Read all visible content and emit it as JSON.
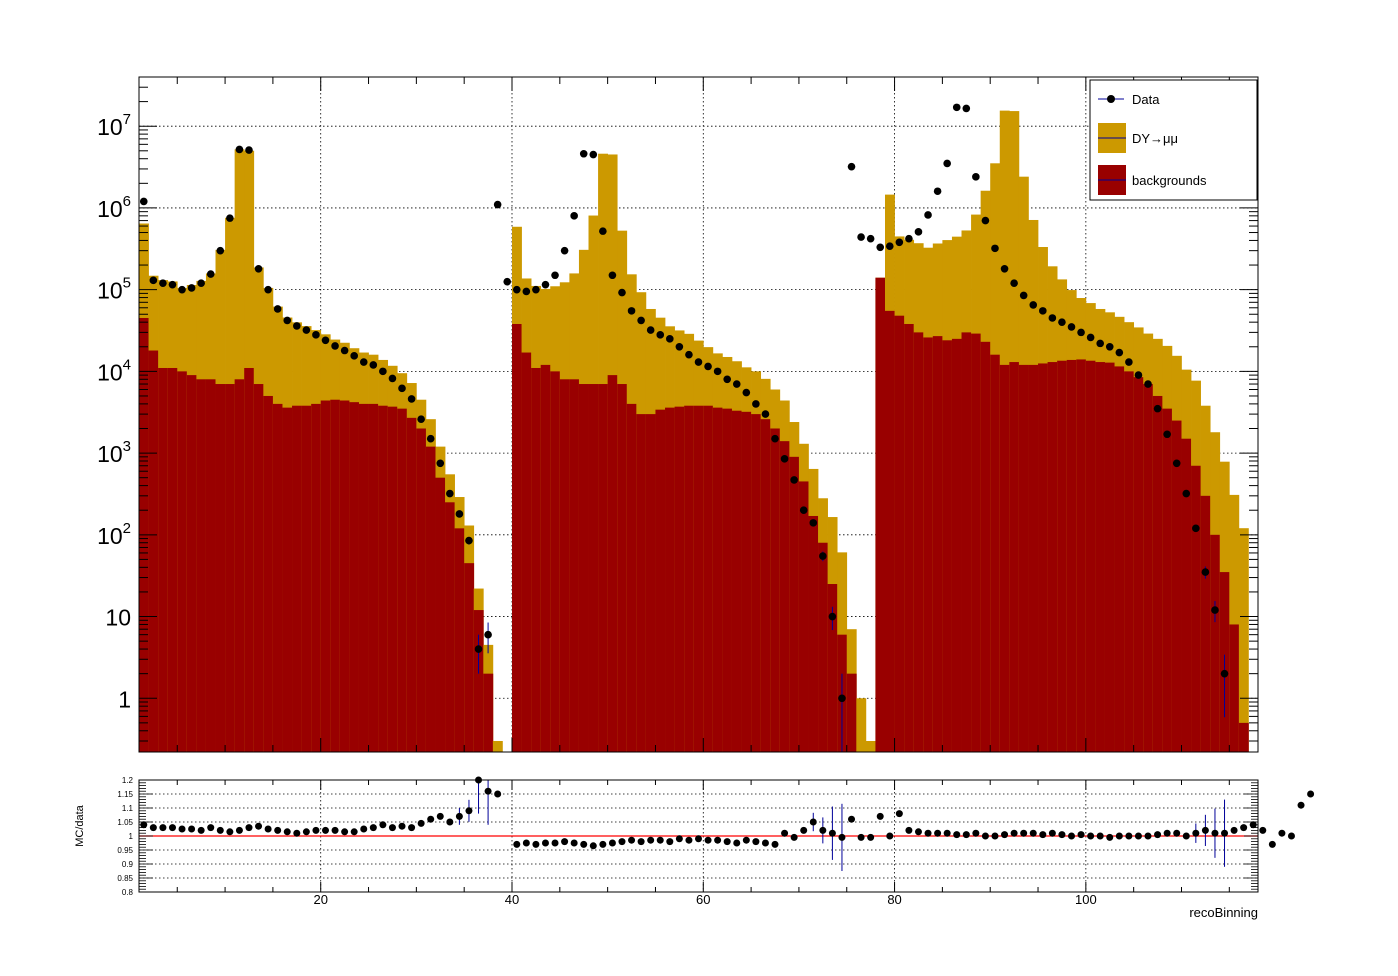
{
  "chart_data": [
    {
      "type": "bar",
      "subtype": "stacked-histogram-with-data-points",
      "xlim": [
        1,
        118
      ],
      "ylim": [
        0.22,
        40000000
      ],
      "yscale": "log",
      "grid": true,
      "legend_position": "top-right",
      "legend": [
        {
          "label": "Data",
          "style": "marker"
        },
        {
          "label": "DY→μμ",
          "style": "fill"
        },
        {
          "label": "backgrounds",
          "style": "fill"
        }
      ],
      "colors": {
        "dy": "#cc9900",
        "backgrounds": "#990000",
        "data": "#000000",
        "outline": "#000099"
      },
      "x_ticks": [
        20,
        40,
        60,
        80,
        100
      ],
      "y_tick_labels": [
        "1",
        "10",
        "10^2",
        "10^3",
        "10^4",
        "10^5",
        "10^6",
        "10^7"
      ],
      "y_tick_values": [
        1,
        10,
        100,
        1000,
        10000,
        100000,
        1000000,
        10000000
      ],
      "series": [
        {
          "name": "backgrounds",
          "values": [
            45000,
            18000,
            11000,
            11000,
            10000,
            9000,
            8000,
            8000,
            7000,
            7000,
            8000,
            11000,
            7000,
            5000,
            4000,
            3600,
            3800,
            3800,
            4000,
            4400,
            4500,
            4400,
            4200,
            4000,
            4000,
            3800,
            3700,
            3500,
            2700,
            2000,
            1200,
            500,
            250,
            120,
            45,
            12,
            2,
            0,
            0,
            38000,
            17000,
            11000,
            12000,
            10000,
            8000,
            8000,
            7000,
            7000,
            7000,
            9000,
            7000,
            4000,
            3000,
            3000,
            3400,
            3600,
            3700,
            3800,
            3800,
            3800,
            3600,
            3500,
            3300,
            3200,
            3000,
            2600,
            2000,
            1400,
            900,
            450,
            170,
            80,
            25,
            6,
            2,
            0,
            0,
            140000,
            55000,
            48000,
            38000,
            30000,
            26000,
            27000,
            24000,
            25000,
            30000,
            29000,
            23000,
            16000,
            12000,
            13000,
            12000,
            12000,
            12500,
            13000,
            13500,
            13800,
            14000,
            13500,
            13000,
            12800,
            11500,
            10000,
            8500,
            7000,
            5000,
            3500,
            2500,
            1500,
            700,
            300,
            100,
            35,
            8,
            0.5
          ]
        },
        {
          "name": "DY→μμ",
          "values": [
            600000,
            130000,
            120000,
            115000,
            95000,
            105000,
            120000,
            150000,
            300000,
            750000,
            5200000,
            5000000,
            180000,
            100000,
            58000,
            42000,
            36000,
            32000,
            28000,
            24000,
            20000,
            18000,
            15000,
            13000,
            12000,
            10000,
            8000,
            6000,
            4500,
            2500,
            1400,
            700,
            300,
            170,
            85,
            10,
            2.5,
            0.3,
            0,
            550000,
            120000,
            100000,
            90000,
            100000,
            115000,
            150000,
            300000,
            800000,
            4600000,
            4500000,
            520000,
            150000,
            90000,
            55000,
            42000,
            32000,
            28000,
            25000,
            20000,
            16000,
            13000,
            11500,
            10000,
            8000,
            7000,
            5500,
            4000,
            3000,
            1500,
            850,
            470,
            200,
            140,
            55,
            5,
            1,
            0.3,
            0,
            1400000,
            400000,
            370000,
            340000,
            300000,
            340000,
            380000,
            420000,
            500000,
            800000,
            1600000,
            3500000,
            15500000,
            15300000,
            2400000,
            700000,
            320000,
            180000,
            120000,
            85000,
            65000,
            55000,
            45000,
            40000,
            35000,
            30000,
            26000,
            22000,
            20000,
            17000,
            13000,
            9000,
            7000,
            3500,
            1700,
            750,
            300,
            120,
            30,
            6,
            0.5
          ]
        },
        {
          "name": "Data",
          "values": [
            1200000,
            130000,
            120000,
            115000,
            100000,
            105000,
            120000,
            155000,
            300000,
            750000,
            5200000,
            5100000,
            180000,
            100000,
            58000,
            42000,
            36000,
            32000,
            28000,
            24000,
            20500,
            18000,
            15500,
            13000,
            12000,
            10000,
            8200,
            6200,
            4600,
            2600,
            1500,
            750,
            320,
            180,
            85,
            4,
            6,
            1100000,
            125000,
            100000,
            95000,
            100000,
            115000,
            150000,
            300000,
            800000,
            4600000,
            4500000,
            520000,
            150000,
            92000,
            55000,
            42000,
            32000,
            28000,
            25000,
            20000,
            16000,
            13000,
            11500,
            10000,
            8000,
            7000,
            5500,
            4000,
            3000,
            1500,
            850,
            470,
            200,
            140,
            55,
            10,
            1,
            3200000,
            440000,
            420000,
            330000,
            340000,
            380000,
            420000,
            510000,
            820000,
            1600000,
            3500000,
            17000000,
            16500000,
            2400000,
            700000,
            320000,
            180000,
            120000,
            85000,
            65000,
            55000,
            45000,
            40000,
            35000,
            30000,
            26000,
            22000,
            20000,
            17000,
            13000,
            9000,
            7000,
            3500,
            1700,
            750,
            320,
            120,
            35,
            12,
            2
          ]
        }
      ]
    },
    {
      "type": "scatter",
      "subtype": "ratio",
      "ylabel": "MC/data",
      "xlabel": "recoBinning",
      "xlim": [
        1,
        118
      ],
      "ylim": [
        0.8,
        1.2
      ],
      "grid": true,
      "reference_line": 1.0,
      "reference_color": "#ff0000",
      "x_ticks": [
        20,
        40,
        60,
        80,
        100
      ],
      "y_tick_labels": [
        "0.8",
        "0.85",
        "0.9",
        "0.95",
        "1",
        "1.05",
        "1.1",
        "1.15",
        "1.2"
      ],
      "values": [
        1.04,
        1.03,
        1.03,
        1.03,
        1.025,
        1.025,
        1.02,
        1.03,
        1.02,
        1.015,
        1.02,
        1.03,
        1.035,
        1.025,
        1.02,
        1.015,
        1.01,
        1.015,
        1.02,
        1.02,
        1.02,
        1.015,
        1.015,
        1.025,
        1.03,
        1.04,
        1.03,
        1.035,
        1.03,
        1.045,
        1.06,
        1.07,
        1.05,
        1.07,
        1.09,
        1.2,
        1.16,
        1.15,
        null,
        0.97,
        0.975,
        0.97,
        0.975,
        0.975,
        0.98,
        0.975,
        0.97,
        0.965,
        0.97,
        0.975,
        0.98,
        0.985,
        0.98,
        0.985,
        0.985,
        0.98,
        0.99,
        0.985,
        0.99,
        0.985,
        0.985,
        0.98,
        0.975,
        0.985,
        0.98,
        0.975,
        0.97,
        1.01,
        0.995,
        1.02,
        1.05,
        1.02,
        1.01,
        0.995,
        1.06,
        0.995,
        0.995,
        1.07,
        1.0,
        1.08,
        1.02,
        1.015,
        1.01,
        1.01,
        1.01,
        1.005,
        1.005,
        1.01,
        1.0,
        1.0,
        1.005,
        1.01,
        1.01,
        1.01,
        1.005,
        1.01,
        1.005,
        1.0,
        1.005,
        1.0,
        1.0,
        0.995,
        1.0,
        1.0,
        1.0,
        1.0,
        1.005,
        1.01,
        1.01,
        1.0,
        1.01,
        1.02,
        1.01,
        1.01,
        1.02,
        1.03,
        1.04,
        1.02,
        0.97,
        1.01,
        1.0,
        1.11,
        1.15
      ]
    }
  ]
}
